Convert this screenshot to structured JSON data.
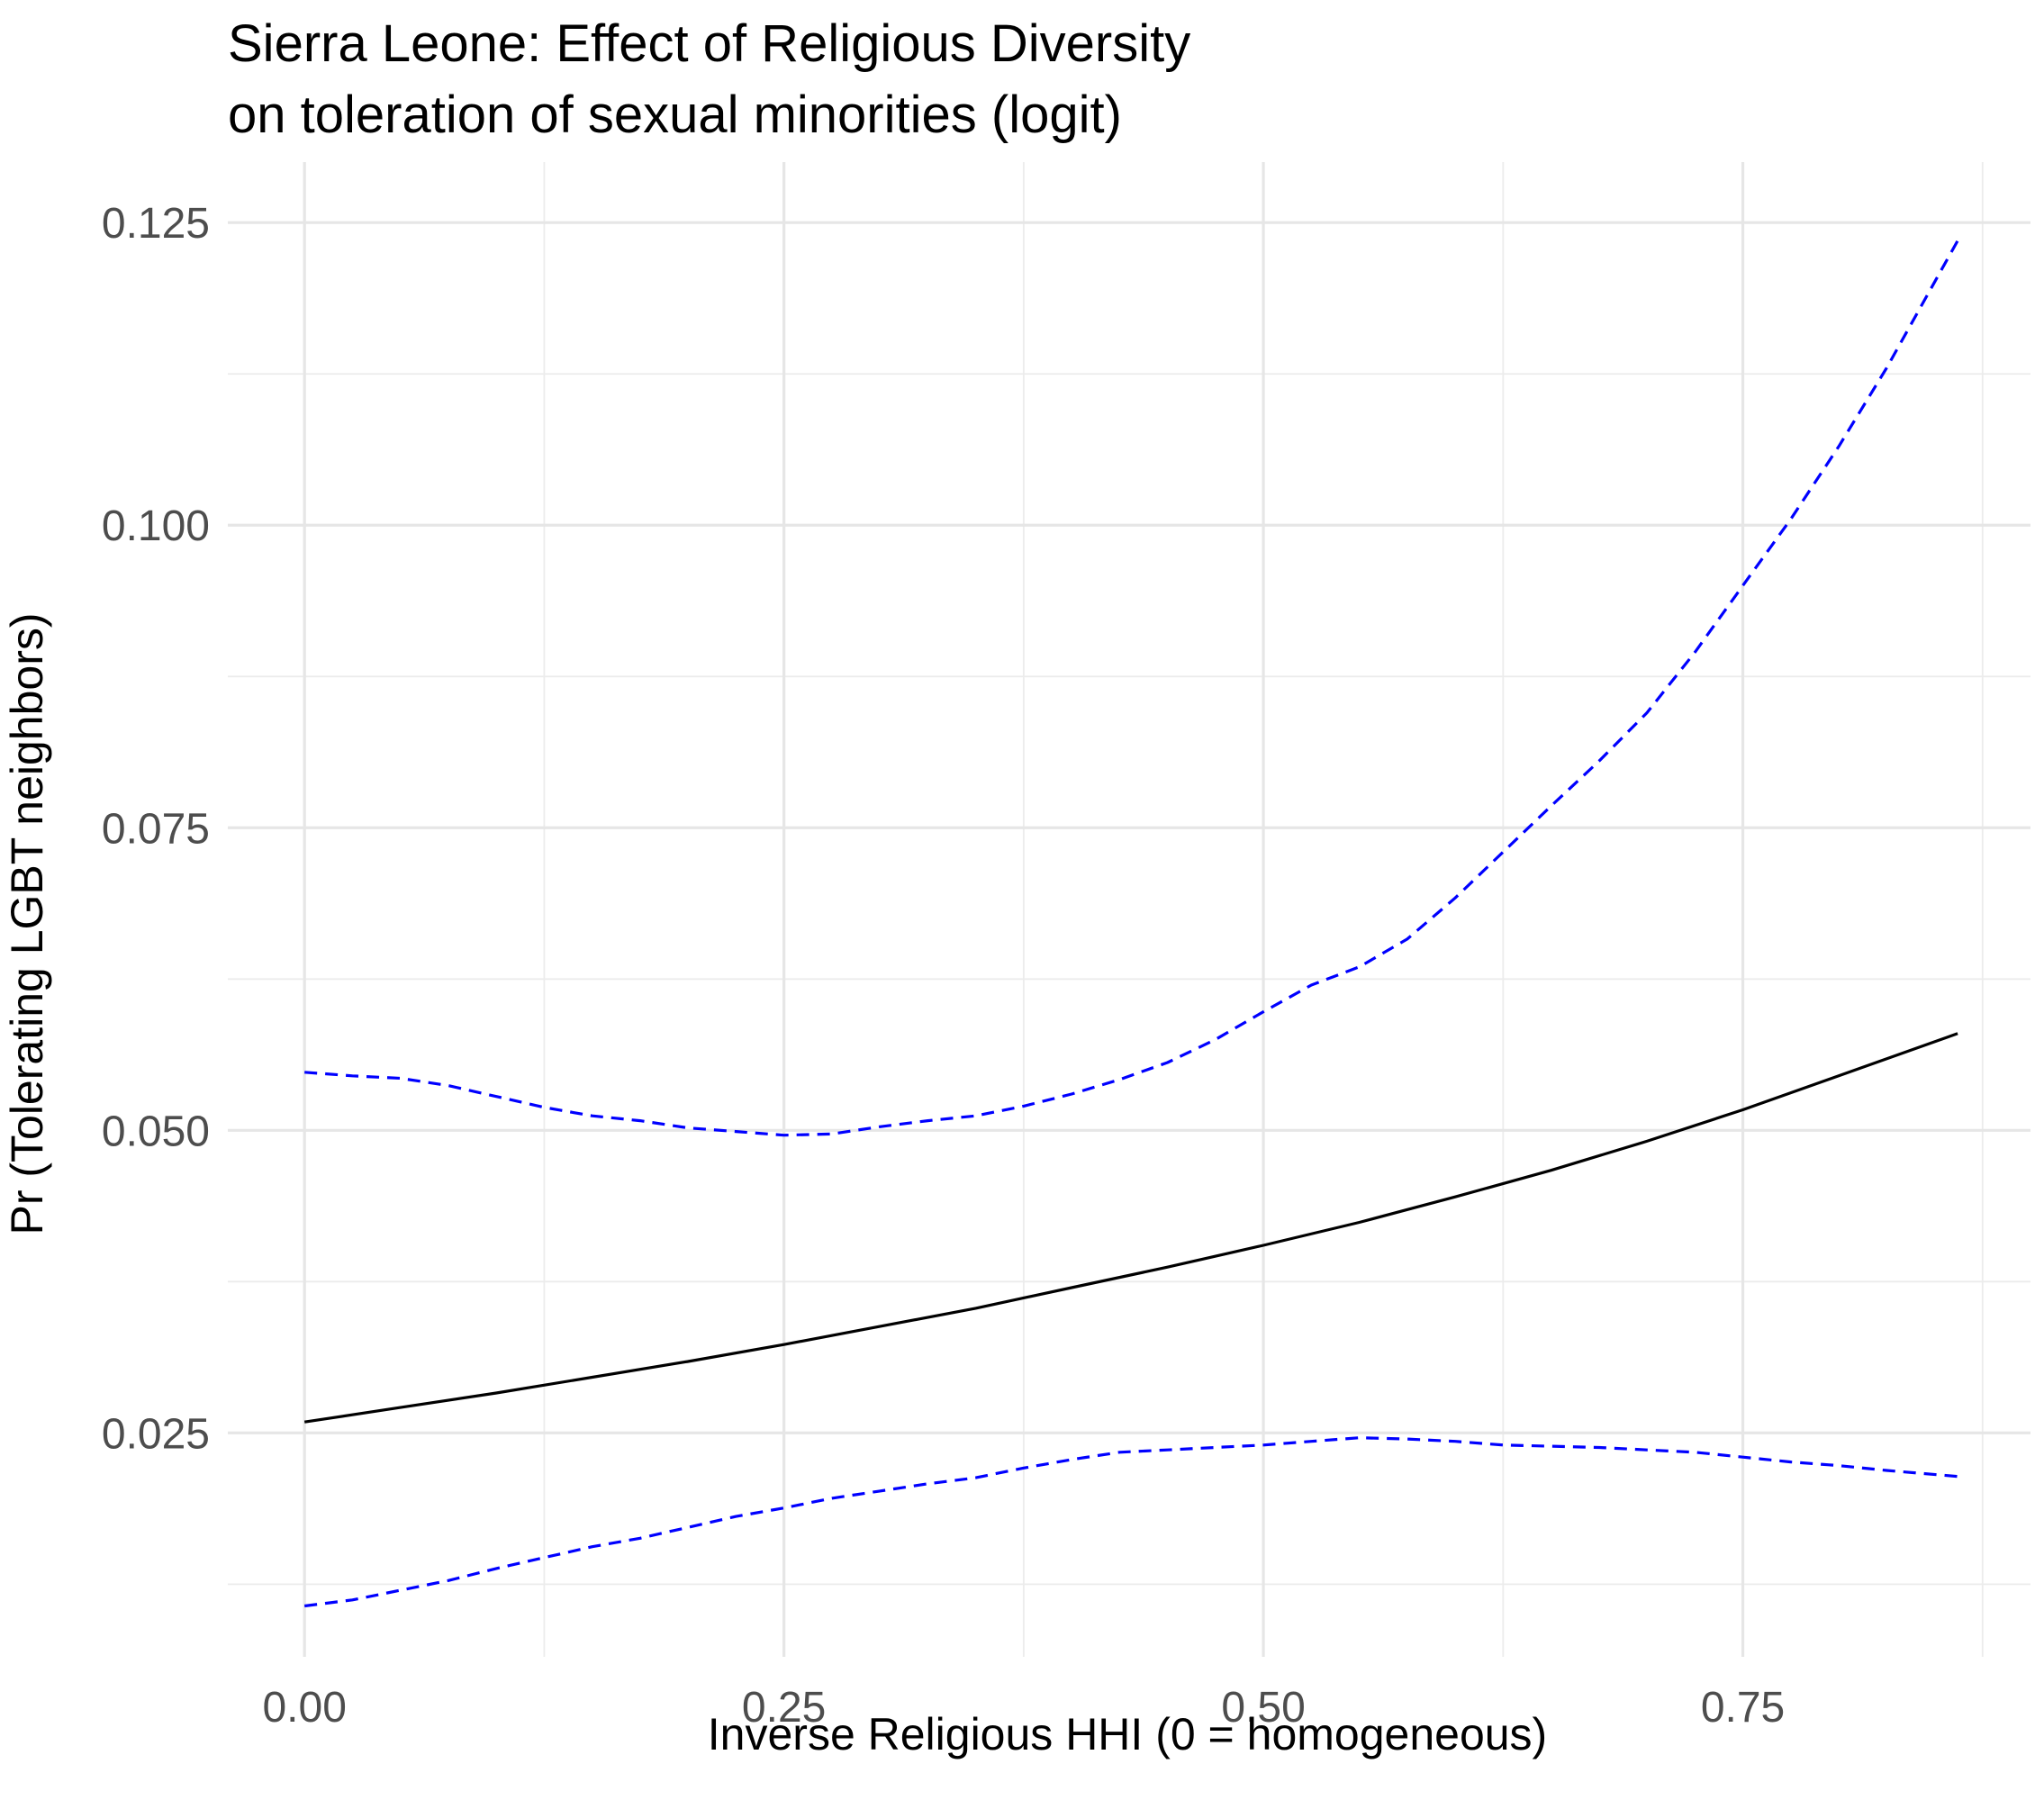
{
  "chart_data": {
    "type": "line",
    "title": "Sierra Leone: Effect of Religious Diversity",
    "subtitle": "on toleration of sexual minorities (logit)",
    "xlabel": "Inverse Religious HHI (0 = homogeneous)",
    "ylabel": "Pr (Tolerating LGBT neighbors)",
    "xlim": [
      -0.04,
      0.9
    ],
    "ylim": [
      0.0065,
      0.13
    ],
    "x_ticks": [
      0.0,
      0.25,
      0.5,
      0.75
    ],
    "x_tick_labels": [
      "0.00",
      "0.25",
      "0.50",
      "0.75"
    ],
    "y_ticks": [
      0.025,
      0.05,
      0.075,
      0.1,
      0.125
    ],
    "y_tick_labels": [
      "0.025",
      "0.050",
      "0.075",
      "0.100",
      "0.125"
    ],
    "grid": true,
    "series": [
      {
        "role": "estimate",
        "color": "#000000",
        "linestyle": "solid",
        "x": [
          0.0,
          0.05,
          0.1,
          0.15,
          0.2,
          0.25,
          0.3,
          0.35,
          0.4,
          0.45,
          0.5,
          0.55,
          0.6,
          0.65,
          0.7,
          0.75,
          0.8,
          0.862
        ],
        "values": [
          0.0259,
          0.0271,
          0.0283,
          0.0296,
          0.0309,
          0.0323,
          0.0338,
          0.0353,
          0.037,
          0.0387,
          0.0405,
          0.0424,
          0.0445,
          0.0467,
          0.0491,
          0.0517,
          0.0545,
          0.058
        ]
      },
      {
        "role": "upper-bound",
        "color": "#0000ff",
        "linestyle": "dashed",
        "x": [
          0.0,
          0.025,
          0.05,
          0.075,
          0.1,
          0.125,
          0.15,
          0.175,
          0.2,
          0.225,
          0.25,
          0.275,
          0.3,
          0.325,
          0.35,
          0.375,
          0.4,
          0.425,
          0.45,
          0.475,
          0.5,
          0.525,
          0.55,
          0.575,
          0.6,
          0.625,
          0.65,
          0.675,
          0.7,
          0.725,
          0.75,
          0.775,
          0.8,
          0.825,
          0.862
        ],
        "values": [
          0.0548,
          0.0545,
          0.0543,
          0.0537,
          0.0528,
          0.0519,
          0.0512,
          0.0508,
          0.0502,
          0.0499,
          0.0496,
          0.0497,
          0.0503,
          0.0508,
          0.0512,
          0.052,
          0.053,
          0.0542,
          0.0556,
          0.0575,
          0.0598,
          0.062,
          0.0635,
          0.0658,
          0.0692,
          0.073,
          0.0768,
          0.0805,
          0.0845,
          0.0895,
          0.095,
          0.1005,
          0.1065,
          0.113,
          0.1235
        ]
      },
      {
        "role": "lower-bound",
        "color": "#0000ff",
        "linestyle": "dashed",
        "x": [
          0.0,
          0.025,
          0.05,
          0.075,
          0.1,
          0.125,
          0.15,
          0.175,
          0.2,
          0.225,
          0.25,
          0.275,
          0.3,
          0.325,
          0.35,
          0.375,
          0.4,
          0.425,
          0.45,
          0.475,
          0.5,
          0.525,
          0.55,
          0.575,
          0.6,
          0.625,
          0.65,
          0.675,
          0.7,
          0.725,
          0.75,
          0.775,
          0.8,
          0.825,
          0.862
        ],
        "values": [
          0.0107,
          0.0112,
          0.012,
          0.0128,
          0.0138,
          0.0147,
          0.0156,
          0.0163,
          0.0172,
          0.0181,
          0.0188,
          0.0196,
          0.0202,
          0.0208,
          0.0213,
          0.0221,
          0.0228,
          0.0234,
          0.0236,
          0.0238,
          0.024,
          0.0243,
          0.0246,
          0.0245,
          0.0243,
          0.024,
          0.0239,
          0.0238,
          0.0236,
          0.0234,
          0.023,
          0.0226,
          0.0223,
          0.0219,
          0.0214
        ]
      }
    ]
  }
}
